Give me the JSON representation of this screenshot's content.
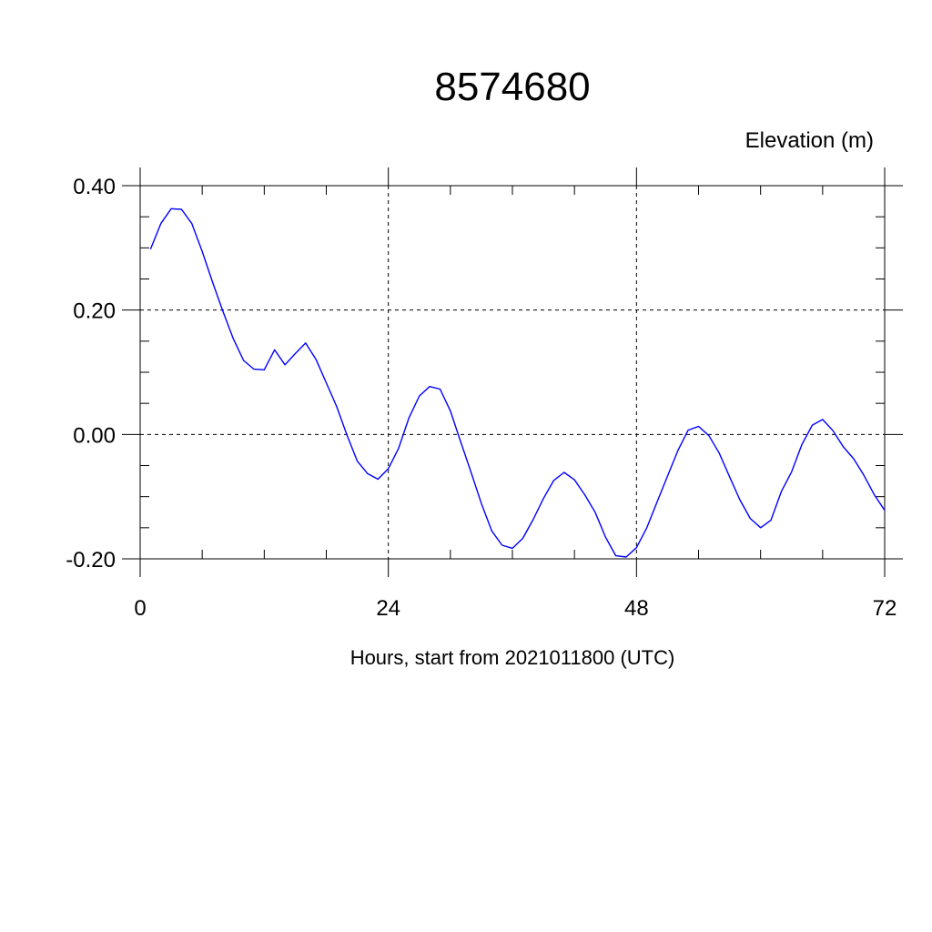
{
  "chart_data": {
    "type": "line",
    "title": "8574680",
    "ylabel": "Elevation (m)",
    "xlabel": "Hours, start from 2021011800 (UTC)",
    "xlim": [
      0,
      72
    ],
    "ylim": [
      -0.2,
      0.4
    ],
    "x_ticks": [
      0,
      24,
      48,
      72
    ],
    "x_tick_labels": [
      "0",
      "24",
      "48",
      "72"
    ],
    "y_ticks": [
      0.4,
      0.2,
      0.0,
      -0.2
    ],
    "y_tick_labels": [
      "0.40",
      "0.20",
      "0.00",
      "-0.20"
    ],
    "grid": "dashed at major ticks",
    "line_color": "#0000ff",
    "series": [
      {
        "x": [
          1,
          2,
          3,
          4,
          5,
          6,
          7,
          8,
          9,
          10,
          11,
          12,
          13,
          14,
          15,
          16,
          17,
          18,
          19,
          20,
          21,
          22,
          23,
          24,
          25,
          26,
          27,
          28,
          29,
          30,
          31,
          32,
          33,
          34,
          35,
          36,
          37,
          38,
          39,
          40,
          41,
          42,
          43,
          44,
          45,
          46,
          47,
          48,
          49,
          50,
          51,
          52,
          53,
          54,
          55,
          56,
          57,
          58,
          59,
          60,
          61,
          62,
          63,
          64,
          65,
          66,
          67,
          68,
          69,
          70,
          71,
          72
        ],
        "values": [
          0.298,
          0.339,
          0.363,
          0.362,
          0.339,
          0.294,
          0.245,
          0.198,
          0.154,
          0.119,
          0.105,
          0.104,
          0.136,
          0.112,
          0.13,
          0.147,
          0.121,
          0.083,
          0.045,
          -0.001,
          -0.043,
          -0.063,
          -0.072,
          -0.055,
          -0.022,
          0.027,
          0.062,
          0.077,
          0.073,
          0.038,
          -0.012,
          -0.061,
          -0.111,
          -0.155,
          -0.178,
          -0.183,
          -0.167,
          -0.137,
          -0.103,
          -0.074,
          -0.061,
          -0.073,
          -0.097,
          -0.125,
          -0.165,
          -0.195,
          -0.197,
          -0.182,
          -0.15,
          -0.108,
          -0.067,
          -0.026,
          0.007,
          0.013,
          -0.002,
          -0.03,
          -0.068,
          -0.105,
          -0.135,
          -0.15,
          -0.138,
          -0.092,
          -0.06,
          -0.016,
          0.015,
          0.024,
          0.006,
          -0.02,
          -0.039,
          -0.066,
          -0.097,
          -0.122
        ]
      }
    ]
  }
}
